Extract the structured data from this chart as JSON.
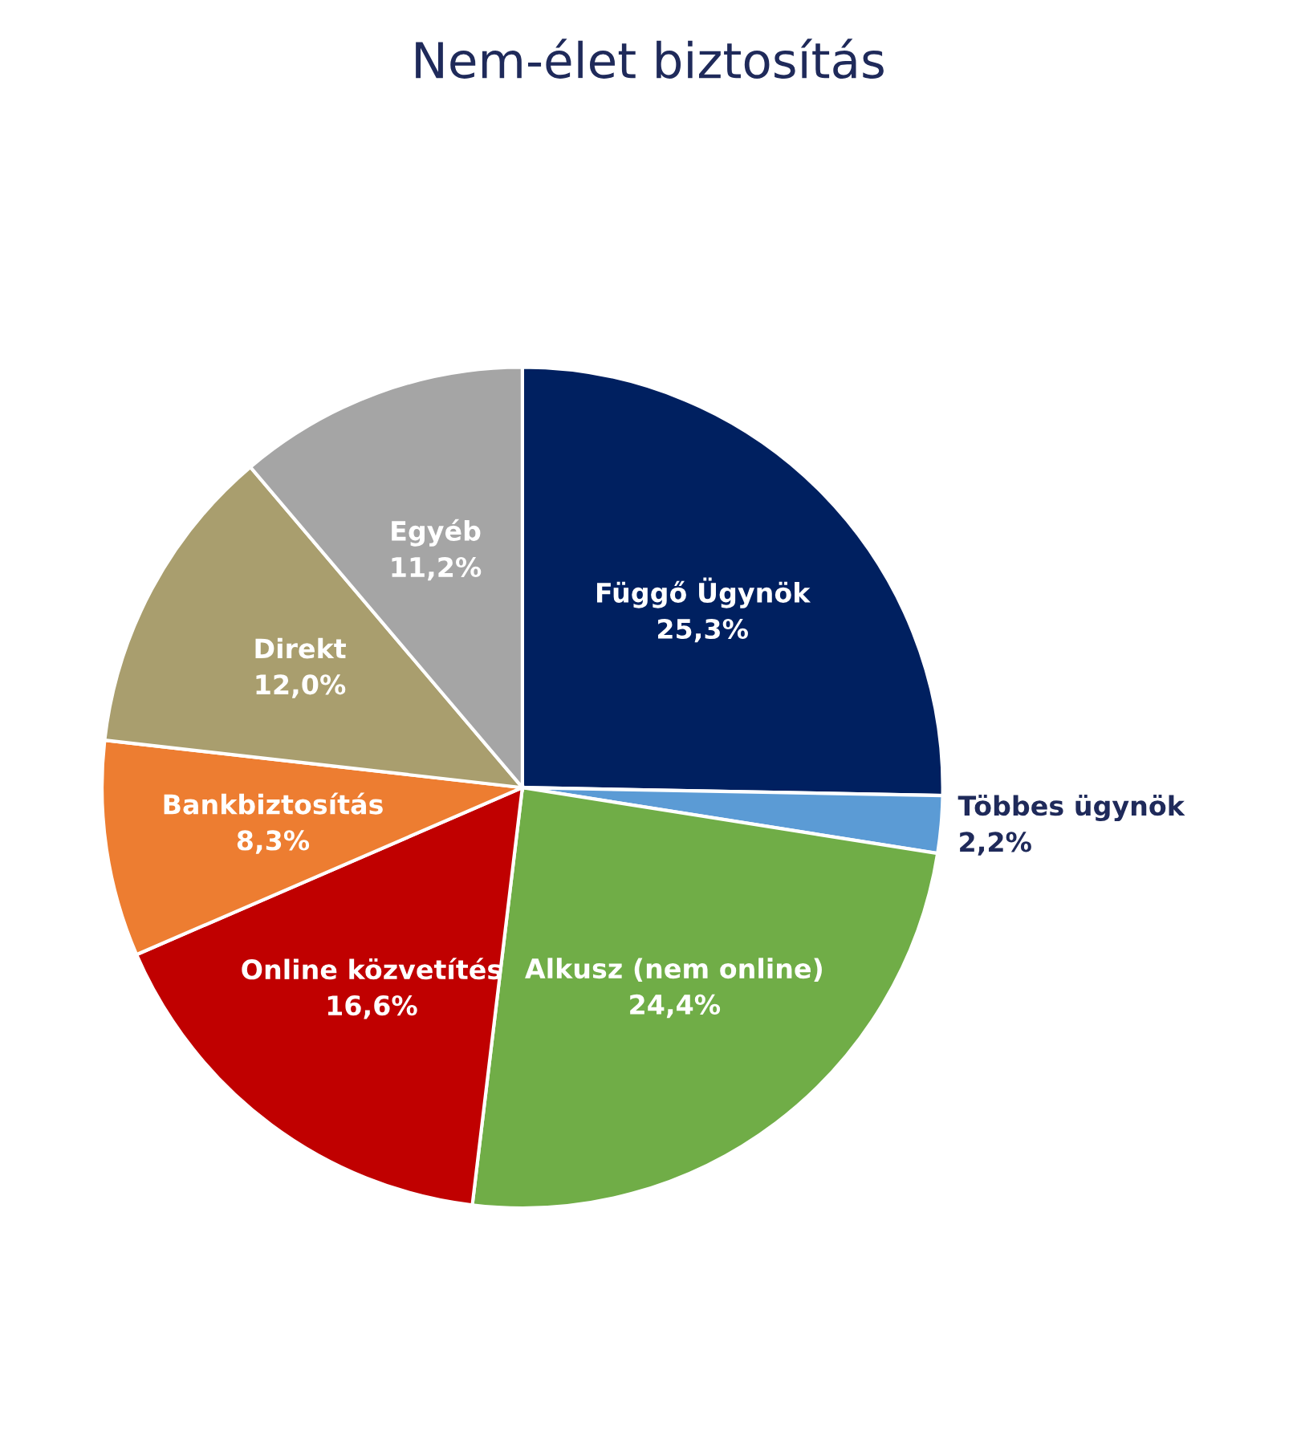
{
  "chart_data": {
    "type": "pie",
    "title": "Nem-élet biztosítás",
    "categories": [
      "Függő Ügynök",
      "Többes ügynök",
      "Alkusz (nem online)",
      "Online közvetítés",
      "Bankbiztosítás",
      "Direkt",
      "Egyéb"
    ],
    "values": [
      25.3,
      2.2,
      24.4,
      16.6,
      8.3,
      12.0,
      11.2
    ],
    "value_labels": [
      "25,3%",
      "2,2%",
      "24,4%",
      "16,6%",
      "8,3%",
      "12,0%",
      "11,2%"
    ],
    "colors": [
      "#002060",
      "#5b9bd5",
      "#70ad47",
      "#c00000",
      "#ed7d31",
      "#a99e6e",
      "#a5a5a5"
    ]
  }
}
